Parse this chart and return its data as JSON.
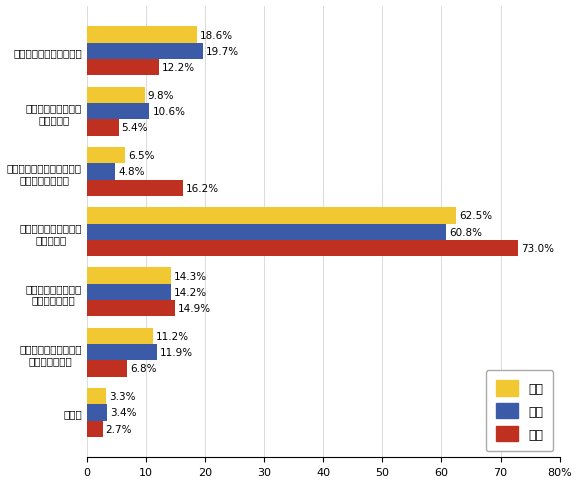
{
  "categories": [
    "日光浴は良いものだから",
    "日焦けした肌の方が\n好きだから",
    "日焦け止めクリームなどが\n肌に合わないから",
    "紫外線対策をするのが\n面倒だから",
    "紫外線対策の方法が\nわからないから",
    "紫外線の何が悪いのか\nわからないから",
    "その他"
  ],
  "zentai": [
    18.6,
    9.8,
    6.5,
    62.5,
    14.3,
    11.2,
    3.3
  ],
  "dansei": [
    19.7,
    10.6,
    4.8,
    60.8,
    14.2,
    11.9,
    3.4
  ],
  "josei": [
    12.2,
    5.4,
    16.2,
    73.0,
    14.9,
    6.8,
    2.7
  ],
  "color_zentai": "#F2C832",
  "color_dansei": "#3B5BA8",
  "color_josei": "#C03020",
  "legend_labels": [
    "全体",
    "男性",
    "女性"
  ],
  "xlabel_max": 80,
  "xtick_values": [
    0,
    10,
    20,
    30,
    40,
    50,
    60,
    70,
    80
  ],
  "bar_height": 0.27,
  "label_fontsize": 7.5,
  "tick_fontsize": 8,
  "legend_fontsize": 9,
  "background_color": "#ffffff"
}
